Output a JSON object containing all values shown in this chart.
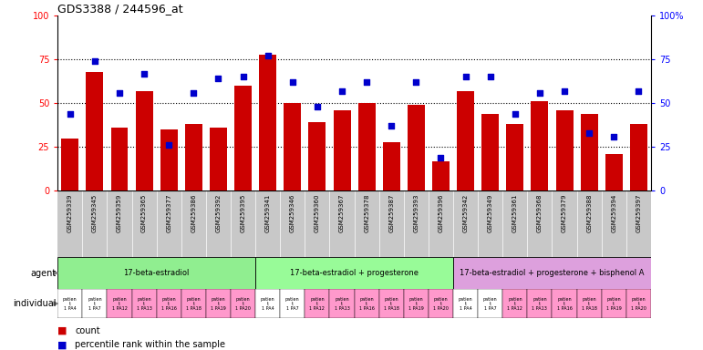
{
  "title": "GDS3388 / 244596_at",
  "gsm_ids": [
    "GSM259339",
    "GSM259345",
    "GSM259359",
    "GSM259365",
    "GSM259377",
    "GSM259386",
    "GSM259392",
    "GSM259395",
    "GSM259341",
    "GSM259346",
    "GSM259360",
    "GSM259367",
    "GSM259378",
    "GSM259387",
    "GSM259393",
    "GSM259396",
    "GSM259342",
    "GSM259349",
    "GSM259361",
    "GSM259368",
    "GSM259379",
    "GSM259388",
    "GSM259394",
    "GSM259397"
  ],
  "counts": [
    30,
    68,
    36,
    57,
    35,
    38,
    36,
    60,
    78,
    50,
    39,
    46,
    50,
    28,
    49,
    17,
    57,
    44,
    38,
    51,
    46,
    44,
    21,
    38
  ],
  "percentile": [
    44,
    74,
    56,
    67,
    26,
    56,
    64,
    65,
    77,
    62,
    48,
    57,
    62,
    37,
    62,
    19,
    65,
    65,
    44,
    56,
    57,
    33,
    31,
    57
  ],
  "agent_groups": [
    {
      "label": "17-beta-estradiol",
      "start": 0,
      "end": 8,
      "color": "#90EE90"
    },
    {
      "label": "17-beta-estradiol + progesterone",
      "start": 8,
      "end": 16,
      "color": "#98FB98"
    },
    {
      "label": "17-beta-estradiol + progesterone + bisphenol A",
      "start": 16,
      "end": 24,
      "color": "#DDA0DD"
    }
  ],
  "individual_labels": [
    "patien\nt\n1 PA4",
    "patien\nt\n1 PA7",
    "patien\nt\n1 PA12",
    "patien\nt\n1 PA13",
    "patien\nt\n1 PA16",
    "patien\nt\n1 PA18",
    "patien\nt\n1 PA19",
    "patien\nt\n1 PA20",
    "patien\nt\n1 PA4",
    "patien\nt\n1 PA7",
    "patien\nt\n1 PA12",
    "patien\nt\n1 PA13",
    "patien\nt\n1 PA16",
    "patien\nt\n1 PA18",
    "patien\nt\n1 PA19",
    "patien\nt\n1 PA20",
    "patien\nt\n1 PA4",
    "patien\nt\n1 PA7",
    "patien\nt\n1 PA12",
    "patien\nt\n1 PA13",
    "patien\nt\n1 PA16",
    "patien\nt\n1 PA18",
    "patien\nt\n1 PA19",
    "patien\nt\n1 PA20"
  ],
  "bar_color": "#CC0000",
  "dot_color": "#0000CC",
  "xticklabel_bg": "#C8C8C8",
  "yticks": [
    0,
    25,
    50,
    75,
    100
  ],
  "indiv_bg_colors": [
    "#FFFFFF",
    "#FF99CC",
    "#FF99CC",
    "#FF99CC",
    "#FF99CC",
    "#FF99CC",
    "#FF99CC",
    "#FF99CC",
    "#FFFFFF",
    "#FF99CC",
    "#FF99CC",
    "#FF99CC",
    "#FF99CC",
    "#FF99CC",
    "#FF99CC",
    "#FF99CC",
    "#FFFFFF",
    "#FF99CC",
    "#FF99CC",
    "#FF99CC",
    "#FF99CC",
    "#FF99CC",
    "#FF99CC",
    "#FF99CC"
  ]
}
